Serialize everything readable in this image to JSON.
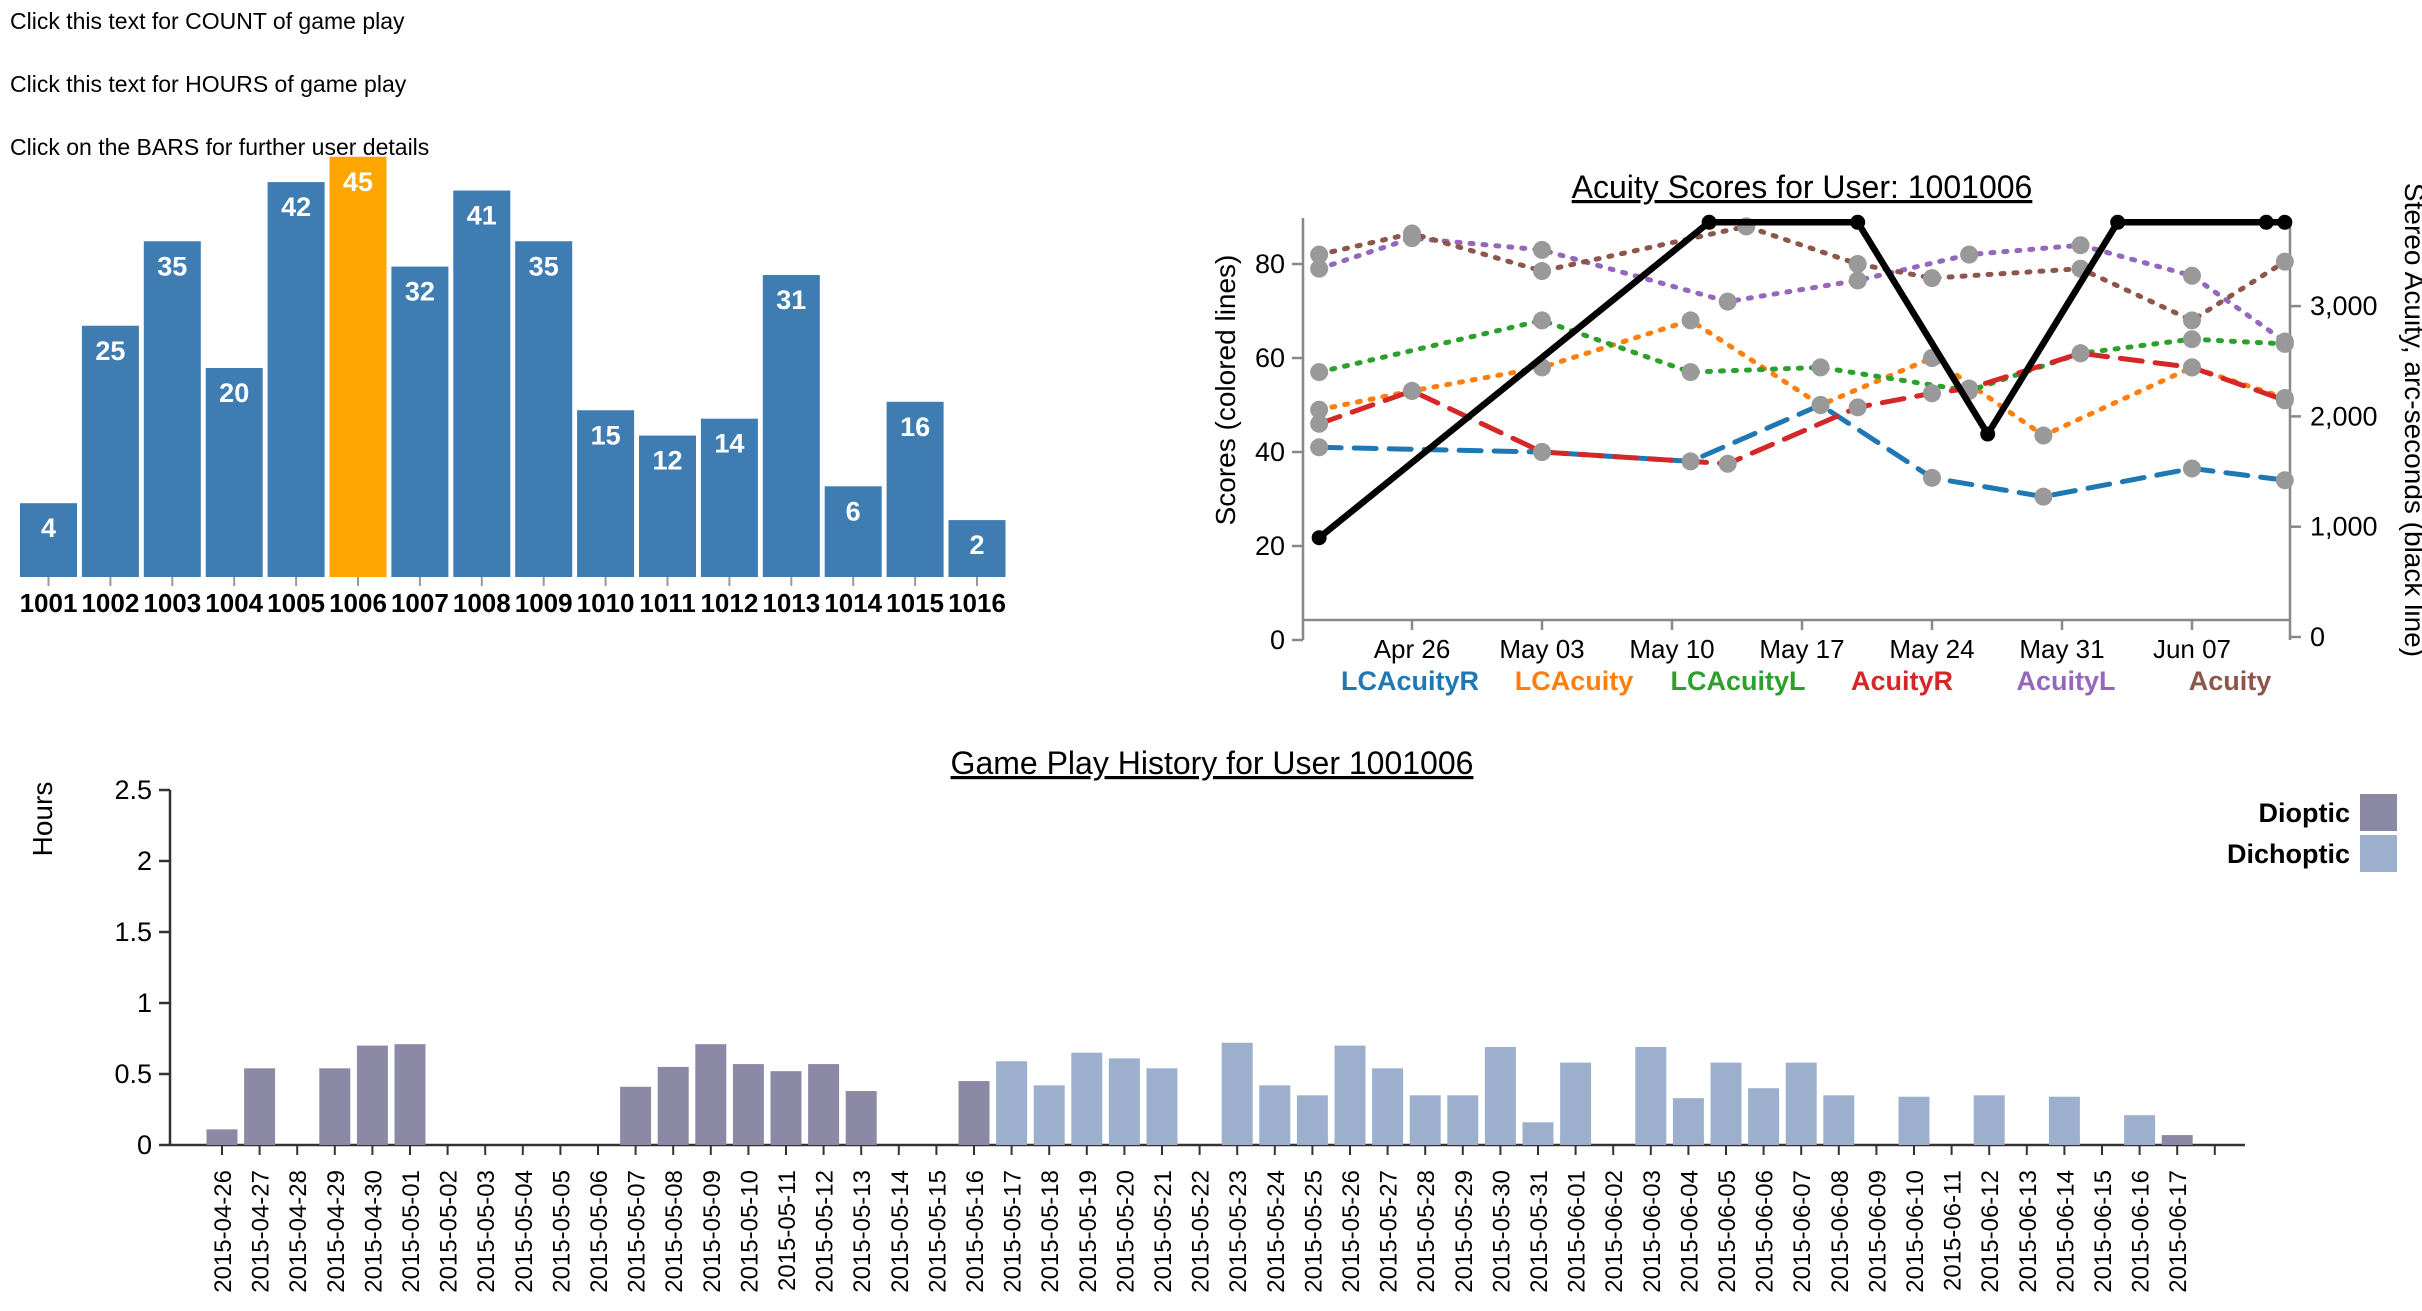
{
  "instructions": {
    "count_link": "Click this text for COUNT of game play",
    "hours_link": "Click this text for HOURS of game play",
    "bars_note": "Click on the BARS for further user details"
  },
  "chart_data": [
    {
      "id": "game_count_by_user",
      "type": "bar",
      "categories": [
        "1001",
        "1002",
        "1003",
        "1004",
        "1005",
        "1006",
        "1007",
        "1008",
        "1009",
        "1010",
        "1011",
        "1012",
        "1013",
        "1014",
        "1015",
        "1016"
      ],
      "values": [
        4,
        25,
        35,
        20,
        42,
        45,
        32,
        41,
        35,
        15,
        12,
        14,
        31,
        6,
        16,
        2
      ],
      "highlighted_category": "1006",
      "bar_color": "#3e7cb1",
      "highlight_color": "#ffa500",
      "value_label_color": "#ffffff"
    },
    {
      "id": "acuity_scores",
      "type": "line",
      "title": "Acuity Scores for User: 1001006",
      "ylabel_left": "Scores (colored lines)",
      "ylabel_right": "Stereo Acuity, arc-seconds (black line)",
      "ylim_left": [
        0,
        90
      ],
      "yticks_left": [
        0,
        20,
        40,
        60,
        80
      ],
      "ylim_right": [
        0,
        3780
      ],
      "yticks_right": [
        {
          "value": 0,
          "label": "0"
        },
        {
          "value": 1000,
          "label": "1,000"
        },
        {
          "value": 2000,
          "label": "2,000"
        },
        {
          "value": 3000,
          "label": "3,000"
        }
      ],
      "x_unit": "day index (days since 2015-04-20, estimated)",
      "x_ticks": [
        {
          "day": 6,
          "label": "Apr 26"
        },
        {
          "day": 13,
          "label": "May 03"
        },
        {
          "day": 20,
          "label": "May 10"
        },
        {
          "day": 27,
          "label": "May 17"
        },
        {
          "day": 34,
          "label": "May 24"
        },
        {
          "day": 41,
          "label": "May 31"
        },
        {
          "day": 48,
          "label": "Jun 07"
        }
      ],
      "series": [
        {
          "name": "LCAcuityR",
          "color": "#1f77b4",
          "style": "dashed",
          "axis": "left",
          "points": [
            [
              1,
              41
            ],
            [
              13,
              40
            ],
            [
              21,
              38
            ],
            [
              28,
              50
            ],
            [
              34,
              34.5
            ],
            [
              40,
              30.5
            ],
            [
              48,
              36.5
            ],
            [
              53,
              34
            ]
          ]
        },
        {
          "name": "LCAcuity",
          "color": "#ff7f0e",
          "style": "dotted",
          "axis": "left",
          "points": [
            [
              1,
              49
            ],
            [
              6,
              53
            ],
            [
              13,
              58
            ],
            [
              21,
              68
            ],
            [
              28,
              50
            ],
            [
              34,
              60
            ],
            [
              40,
              43.5
            ],
            [
              48,
              58
            ],
            [
              53,
              51.5
            ]
          ]
        },
        {
          "name": "LCAcuityL",
          "color": "#2ca02c",
          "style": "dotted",
          "axis": "left",
          "points": [
            [
              1,
              57
            ],
            [
              13,
              68
            ],
            [
              21,
              57
            ],
            [
              28,
              58
            ],
            [
              36,
              53
            ],
            [
              42,
              61
            ],
            [
              48,
              64
            ],
            [
              53,
              63
            ]
          ]
        },
        {
          "name": "AcuityR",
          "color": "#d62728",
          "style": "dashed",
          "axis": "left",
          "points": [
            [
              1,
              46
            ],
            [
              6,
              53
            ],
            [
              13,
              40
            ],
            [
              23,
              37.5
            ],
            [
              30,
              49.5
            ],
            [
              34,
              52.5
            ],
            [
              36,
              53.5
            ],
            [
              42,
              61
            ],
            [
              48,
              58
            ],
            [
              53,
              51
            ]
          ]
        },
        {
          "name": "AcuityL",
          "color": "#9467bd",
          "style": "dotted",
          "axis": "left",
          "points": [
            [
              1,
              79
            ],
            [
              6,
              85.5
            ],
            [
              13,
              83
            ],
            [
              23,
              72
            ],
            [
              30,
              76.5
            ],
            [
              36,
              82
            ],
            [
              42,
              84
            ],
            [
              48,
              77.5
            ],
            [
              53,
              63.5
            ]
          ]
        },
        {
          "name": "Acuity",
          "color": "#8c564b",
          "style": "dotted",
          "axis": "left",
          "points": [
            [
              1,
              82
            ],
            [
              6,
              86.5
            ],
            [
              13,
              78.5
            ],
            [
              24,
              88
            ],
            [
              30,
              80
            ],
            [
              34,
              77
            ],
            [
              42,
              79
            ],
            [
              48,
              68
            ],
            [
              53,
              80.5
            ]
          ]
        },
        {
          "name": "Stereo Acuity",
          "color": "#000000",
          "style": "solid",
          "axis": "right",
          "points": [
            [
              1,
              900
            ],
            [
              22,
              3760
            ],
            [
              30,
              3760
            ],
            [
              37,
              1840
            ],
            [
              44,
              3760
            ],
            [
              52,
              3760
            ],
            [
              53,
              3760
            ]
          ]
        }
      ],
      "legend": [
        {
          "label": "LCAcuityR",
          "color": "#1f77b4"
        },
        {
          "label": "LCAcuity",
          "color": "#ff7f0e"
        },
        {
          "label": "LCAcuityL",
          "color": "#2ca02c"
        },
        {
          "label": "AcuityR",
          "color": "#d62728"
        },
        {
          "label": "AcuityL",
          "color": "#9467bd"
        },
        {
          "label": "Acuity",
          "color": "#8c564b"
        }
      ]
    },
    {
      "id": "game_play_history",
      "type": "bar",
      "title": "Game Play History for User 1001006",
      "ylabel": "Hours",
      "ylim": [
        0,
        2.5
      ],
      "yticks": [
        0,
        0.5,
        1,
        1.5,
        2,
        2.5
      ],
      "legend": [
        {
          "label": "Dioptic",
          "color": "#8b89a5",
          "key": "dioptic"
        },
        {
          "label": "Dichoptic",
          "color": "#9cb0ce",
          "key": "dichoptic"
        }
      ],
      "dates": [
        "2015-04-26",
        "2015-04-27",
        "2015-04-28",
        "2015-04-29",
        "2015-04-30",
        "2015-05-01",
        "2015-05-02",
        "2015-05-03",
        "2015-05-04",
        "2015-05-05",
        "2015-05-06",
        "2015-05-07",
        "2015-05-08",
        "2015-05-09",
        "2015-05-10",
        "2015-05-11",
        "2015-05-12",
        "2015-05-13",
        "2015-05-14",
        "2015-05-15",
        "2015-05-16",
        "2015-05-17",
        "2015-05-18",
        "2015-05-19",
        "2015-05-20",
        "2015-05-21",
        "2015-05-22",
        "2015-05-23",
        "2015-05-24",
        "2015-05-25",
        "2015-05-26",
        "2015-05-27",
        "2015-05-28",
        "2015-05-29",
        "2015-05-30",
        "2015-05-31",
        "2015-06-01",
        "2015-06-02",
        "2015-06-03",
        "2015-06-04",
        "2015-06-05",
        "2015-06-06",
        "2015-06-07",
        "2015-06-08",
        "2015-06-09",
        "2015-06-10",
        "2015-06-11",
        "2015-06-12",
        "2015-06-13",
        "2015-06-14",
        "2015-06-15",
        "2015-06-16",
        "2015-06-17"
      ],
      "hours": [
        0.11,
        0.54,
        0,
        0.54,
        0.7,
        0.71,
        0,
        0,
        0,
        0,
        0,
        0.41,
        0.55,
        0.71,
        0.57,
        0.52,
        0.57,
        0.38,
        0,
        0,
        0.45,
        0.59,
        0.42,
        0.65,
        0.61,
        0.54,
        0,
        0.72,
        0.42,
        0.35,
        0.7,
        0.54,
        0.35,
        0.35,
        0.69,
        0.16,
        0.58,
        0,
        0.69,
        0.33,
        0.58,
        0.4,
        0.58,
        0.35,
        0,
        0.34,
        0,
        0.35,
        0,
        0.34,
        0,
        0.21,
        0.07
      ],
      "mode": [
        "dioptic",
        "dioptic",
        null,
        "dioptic",
        "dioptic",
        "dioptic",
        null,
        null,
        null,
        null,
        null,
        "dioptic",
        "dioptic",
        "dioptic",
        "dioptic",
        "dioptic",
        "dioptic",
        "dioptic",
        null,
        null,
        "dioptic",
        "dichoptic",
        "dichoptic",
        "dichoptic",
        "dichoptic",
        "dichoptic",
        null,
        "dichoptic",
        "dichoptic",
        "dichoptic",
        "dichoptic",
        "dichoptic",
        "dichoptic",
        "dichoptic",
        "dichoptic",
        "dichoptic",
        "dichoptic",
        null,
        "dichoptic",
        "dichoptic",
        "dichoptic",
        "dichoptic",
        "dichoptic",
        "dichoptic",
        null,
        "dichoptic",
        null,
        "dichoptic",
        null,
        "dichoptic",
        null,
        "dichoptic",
        "dioptic"
      ]
    }
  ]
}
